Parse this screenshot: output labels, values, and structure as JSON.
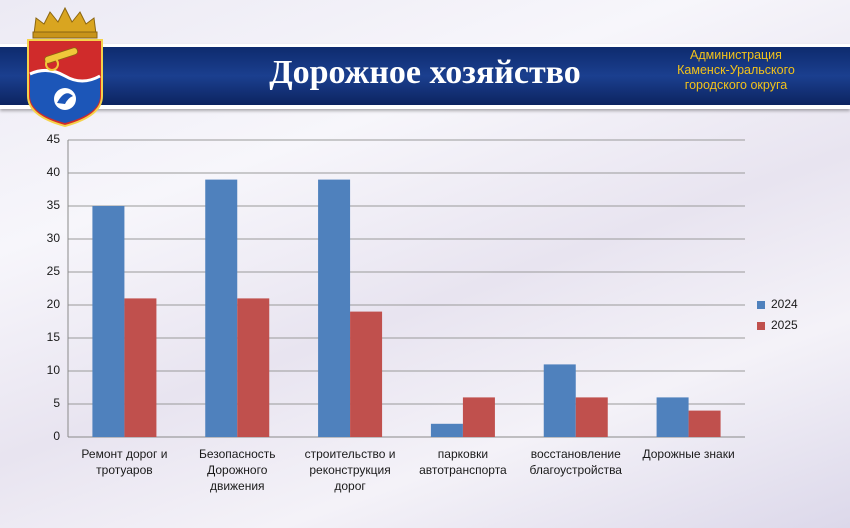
{
  "slide": {
    "title": "Дорожное хозяйство",
    "admin_line1": "Администрация",
    "admin_line2": "Каменск-Уральского",
    "admin_line3": "городского округа",
    "logo": "city-coat-of-arms-icon"
  },
  "colors": {
    "series_2024": "#4f81bd",
    "series_2025": "#c0504d",
    "banner": "#142f77",
    "admin_text": "#f2c21a"
  },
  "chart_data": {
    "type": "bar",
    "title": "",
    "xlabel": "",
    "ylabel": "",
    "ylim": [
      0,
      45
    ],
    "yticks": [
      0,
      5,
      10,
      15,
      20,
      25,
      30,
      35,
      40,
      45
    ],
    "grid": true,
    "legend_position": "right",
    "categories": [
      "Ремонт дорог и\nтротуаров",
      "Безопасность\nДорожного\nдвижения",
      "строительство и\nреконструкция\nдорог",
      "парковки\nавтотранспорта",
      "восстановление\nблагоустройства",
      "Дорожные знаки"
    ],
    "series": [
      {
        "name": "2024",
        "values": [
          35,
          39,
          39,
          2,
          11,
          6
        ]
      },
      {
        "name": "2025",
        "values": [
          21,
          21,
          19,
          6,
          6,
          4
        ]
      }
    ]
  }
}
